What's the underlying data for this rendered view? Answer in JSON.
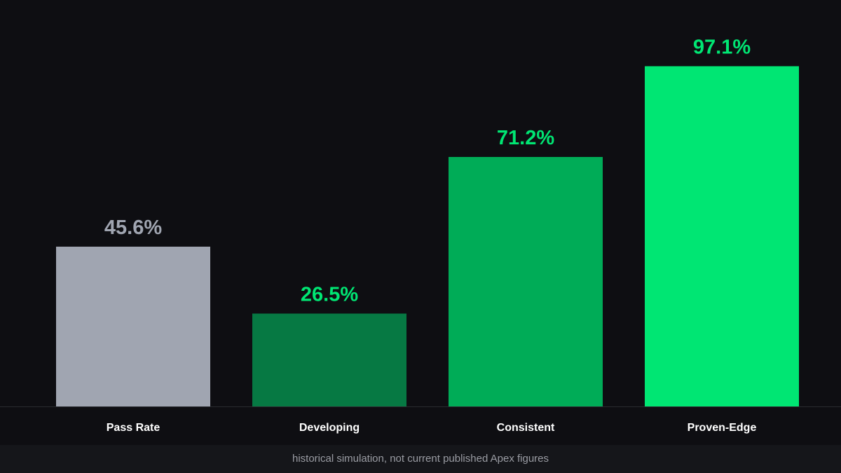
{
  "chart_data": {
    "type": "bar",
    "categories": [
      "Pass Rate",
      "Developing",
      "Consistent",
      "Proven-Edge"
    ],
    "values": [
      45.6,
      26.5,
      71.2,
      97.1
    ],
    "value_labels": [
      "45.6%",
      "26.5%",
      "71.2%",
      "97.1%"
    ],
    "bar_colors": [
      "#a0a5b1",
      "#067943",
      "#00ac57",
      "#00e673"
    ],
    "label_colors": [
      "#a0a5b1",
      "#00e673",
      "#00e673",
      "#00e673"
    ],
    "category_label_color": "#ffffff",
    "background": "#0e0e12",
    "grid": false,
    "legend": "none"
  },
  "footer": {
    "note": "historical simulation, not current published Apex figures"
  }
}
